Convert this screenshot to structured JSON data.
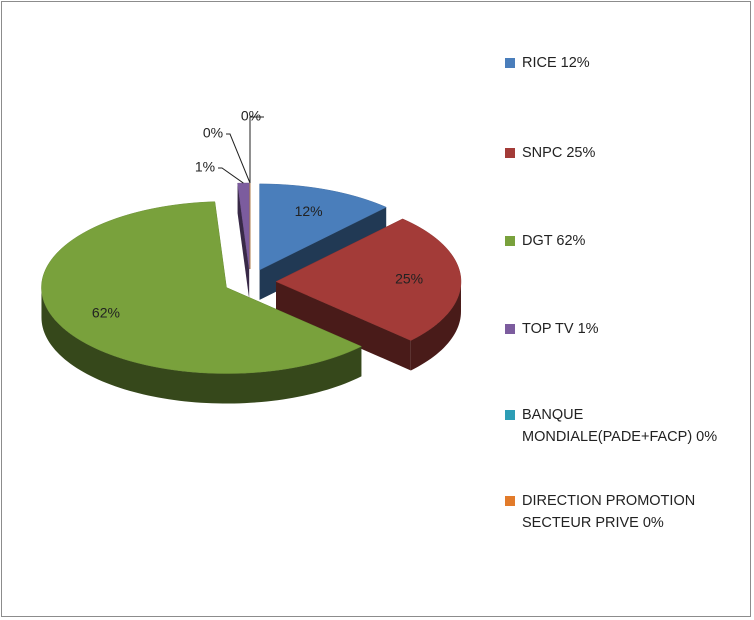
{
  "chart_data": {
    "type": "pie",
    "categories": [
      "RICE 12%",
      "SNPC 25%",
      "DGT 62%",
      "TOP TV 1%",
      "BANQUE MONDIALE(PADE+FACP) 0%",
      "DIRECTION PROMOTION SECTEUR PRIVE 0%"
    ],
    "values": [
      12,
      25,
      62,
      1,
      0,
      0
    ],
    "value_labels": [
      "12%",
      "25%",
      "62%",
      "1%",
      "0%",
      "0%"
    ],
    "colors": [
      "#4a7ebb",
      "#a33b38",
      "#79a13c",
      "#7c5c9e",
      "#2d9db5",
      "#e27b2a"
    ],
    "legend": "right"
  }
}
